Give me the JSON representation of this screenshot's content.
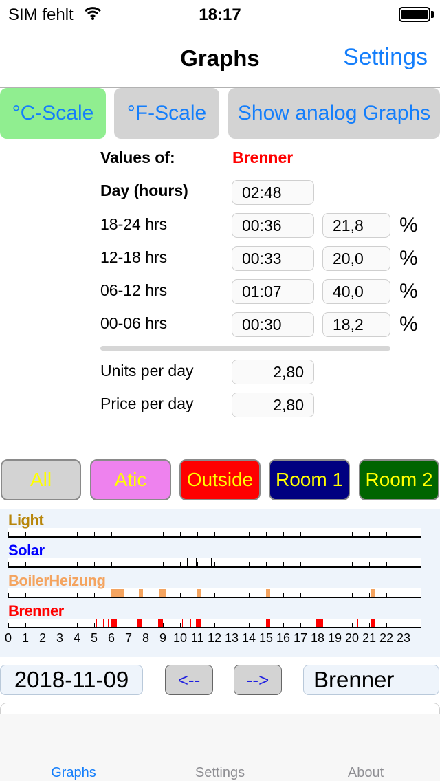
{
  "status_bar": {
    "carrier": "SIM fehlt",
    "time": "18:17"
  },
  "nav": {
    "title": "Graphs",
    "settings": "Settings"
  },
  "scale_buttons": {
    "celsius": "°C-Scale",
    "fahrenheit": "°F-Scale",
    "analog": "Show analog Graphs"
  },
  "values": {
    "values_of_label": "Values of:",
    "sensor": "Brenner",
    "day_label": "Day (hours)",
    "day_value": "02:48",
    "rows": [
      {
        "label": "18-24 hrs",
        "time": "00:36",
        "percent": "21,8",
        "unit": "%"
      },
      {
        "label": "12-18 hrs",
        "time": "00:33",
        "percent": "20,0",
        "unit": "%"
      },
      {
        "label": "06-12 hrs",
        "time": "01:07",
        "percent": "40,0",
        "unit": "%"
      },
      {
        "label": "00-06 hrs",
        "time": "00:30",
        "percent": "18,2",
        "unit": "%"
      }
    ],
    "units_label": "Units per day",
    "units_value": "2,80",
    "price_label": "Price per day",
    "price_value": "2,80"
  },
  "sensor_buttons": [
    {
      "label": "All",
      "bg": "#d3d3d3"
    },
    {
      "label": "Atic",
      "bg": "#ee82ee"
    },
    {
      "label": "Outside",
      "bg": "#ff0000"
    },
    {
      "label": "Room 1",
      "bg": "#000080"
    },
    {
      "label": "Room 2",
      "bg": "#006400"
    }
  ],
  "graph": {
    "series": [
      {
        "name": "Light",
        "color": "#b8860b"
      },
      {
        "name": "Solar",
        "color": "#0000ff"
      },
      {
        "name": "BoilerHeizung",
        "color": "#f4a460"
      },
      {
        "name": "Brenner",
        "color": "#ff0000"
      }
    ],
    "hours": [
      "0",
      "1",
      "2",
      "3",
      "4",
      "5",
      "6",
      "7",
      "8",
      "9",
      "10",
      "11",
      "12",
      "13",
      "14",
      "15",
      "16",
      "17",
      "18",
      "19",
      "20",
      "21",
      "22",
      "23"
    ]
  },
  "chart_data": {
    "type": "bar",
    "x_range": [
      0,
      24
    ],
    "xlabel": "",
    "series": [
      {
        "name": "Light",
        "color": "#b8860b",
        "on_intervals": []
      },
      {
        "name": "Solar",
        "color": "#0000ff",
        "on_intervals": [
          [
            10.4,
            10.45
          ],
          [
            10.9,
            10.95
          ],
          [
            11.3,
            11.35
          ],
          [
            11.8,
            11.85
          ]
        ]
      },
      {
        "name": "BoilerHeizung",
        "color": "#f4a460",
        "on_intervals": [
          [
            6.0,
            6.7
          ],
          [
            7.6,
            7.85
          ],
          [
            8.8,
            9.15
          ],
          [
            11.0,
            11.25
          ],
          [
            15.0,
            15.25
          ],
          [
            21.1,
            21.3
          ]
        ]
      },
      {
        "name": "Brenner",
        "color": "#ff0000",
        "on_intervals": [
          [
            5.1,
            5.15
          ],
          [
            5.5,
            5.55
          ],
          [
            5.8,
            5.85
          ],
          [
            6.0,
            6.3
          ],
          [
            7.5,
            7.8
          ],
          [
            8.7,
            9.0
          ],
          [
            10.1,
            10.15
          ],
          [
            10.6,
            10.65
          ],
          [
            10.9,
            11.2
          ],
          [
            14.8,
            14.85
          ],
          [
            15.0,
            15.25
          ],
          [
            17.9,
            18.3
          ],
          [
            20.3,
            20.35
          ],
          [
            20.9,
            20.95
          ],
          [
            21.1,
            21.3
          ]
        ]
      }
    ]
  },
  "controls": {
    "date": "2018-11-09",
    "prev": "<--",
    "next": "-->",
    "selected_sensor": "Brenner"
  },
  "tabs": [
    {
      "label": "Graphs",
      "color": "#147efb"
    },
    {
      "label": "Settings",
      "color": "#8e8e93"
    },
    {
      "label": "About",
      "color": "#8e8e93"
    }
  ]
}
